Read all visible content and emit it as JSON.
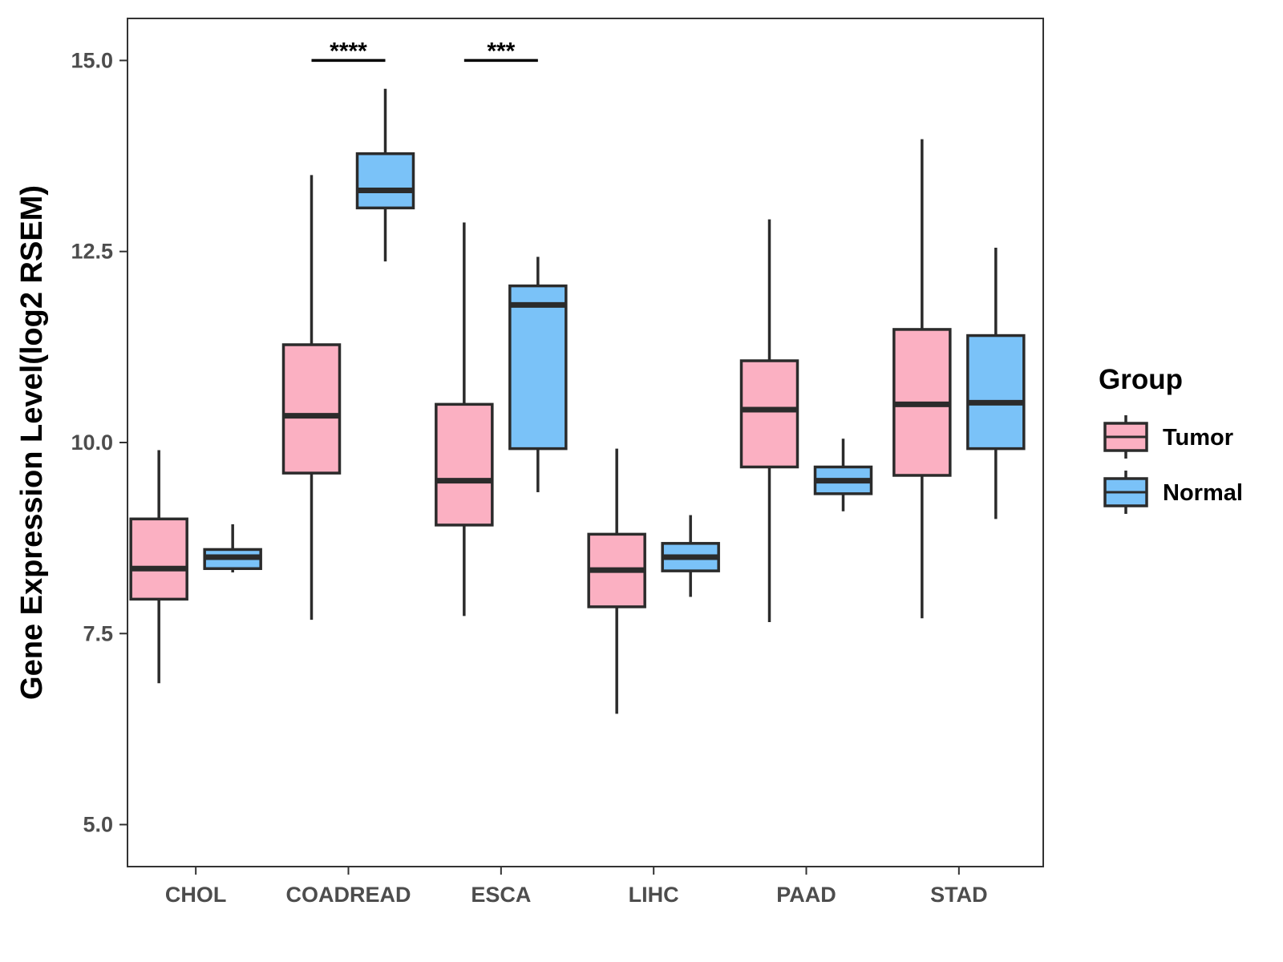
{
  "chart_data": {
    "type": "boxplot",
    "title": "",
    "xlabel": "",
    "ylabel": "Gene Expression Level(log2 RSEM)",
    "ylim": [
      4.45,
      15.55
    ],
    "yticks": [
      5.0,
      7.5,
      10.0,
      12.5,
      15.0
    ],
    "ytick_labels": [
      "5.0",
      "7.5",
      "10.0",
      "12.5",
      "15.0"
    ],
    "categories": [
      "CHOL",
      "COADREAD",
      "ESCA",
      "LIHC",
      "PAAD",
      "STAD"
    ],
    "grid": false,
    "legend": {
      "title": "Group",
      "position": "right",
      "entries": [
        {
          "name": "Tumor",
          "color": "#FBB0C2"
        },
        {
          "name": "Normal",
          "color": "#7AC2F8"
        }
      ]
    },
    "series": [
      {
        "name": "Tumor",
        "color": "#FBB0C2",
        "boxes": [
          {
            "min": 6.85,
            "q1": 7.95,
            "median": 8.35,
            "q3": 9.0,
            "max": 9.9
          },
          {
            "min": 7.68,
            "q1": 9.6,
            "median": 10.35,
            "q3": 11.28,
            "max": 13.5
          },
          {
            "min": 7.73,
            "q1": 8.92,
            "median": 9.5,
            "q3": 10.5,
            "max": 12.88
          },
          {
            "min": 6.45,
            "q1": 7.85,
            "median": 8.33,
            "q3": 8.8,
            "max": 9.92
          },
          {
            "min": 7.65,
            "q1": 9.68,
            "median": 10.43,
            "q3": 11.07,
            "max": 12.92
          },
          {
            "min": 7.7,
            "q1": 9.57,
            "median": 10.5,
            "q3": 11.48,
            "max": 13.97
          }
        ]
      },
      {
        "name": "Normal",
        "color": "#7AC2F8",
        "boxes": [
          {
            "min": 8.3,
            "q1": 8.35,
            "median": 8.5,
            "q3": 8.6,
            "max": 8.93
          },
          {
            "min": 12.37,
            "q1": 13.07,
            "median": 13.3,
            "q3": 13.78,
            "max": 14.63
          },
          {
            "min": 9.35,
            "q1": 9.92,
            "median": 11.8,
            "q3": 12.05,
            "max": 12.43
          },
          {
            "min": 7.98,
            "q1": 8.32,
            "median": 8.5,
            "q3": 8.68,
            "max": 9.05
          },
          {
            "min": 9.1,
            "q1": 9.33,
            "median": 9.5,
            "q3": 9.68,
            "max": 10.05
          },
          {
            "min": 9.0,
            "q1": 9.92,
            "median": 10.52,
            "q3": 11.4,
            "max": 12.55
          }
        ]
      }
    ],
    "annotations": [
      {
        "category": "COADREAD",
        "label": "****",
        "y": 15.0
      },
      {
        "category": "ESCA",
        "label": "***",
        "y": 15.0
      }
    ]
  }
}
